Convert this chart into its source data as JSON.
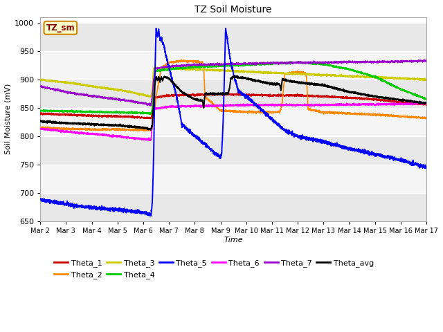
{
  "title": "TZ Soil Moisture",
  "xlabel": "Time",
  "ylabel": "Soil Moisture (mV)",
  "ylim": [
    650,
    1010
  ],
  "xlim": [
    0,
    15
  ],
  "xtick_labels": [
    "Mar 2",
    "Mar 3",
    "Mar 4",
    "Mar 5",
    "Mar 6",
    "Mar 7",
    "Mar 8",
    "Mar 9",
    "Mar 10",
    "Mar 11",
    "Mar 12",
    "Mar 13",
    "Mar 14",
    "Mar 15",
    "Mar 16",
    "Mar 17"
  ],
  "xtick_positions": [
    0,
    1,
    2,
    3,
    4,
    5,
    6,
    7,
    8,
    9,
    10,
    11,
    12,
    13,
    14,
    15
  ],
  "ytick_positions": [
    650,
    700,
    750,
    800,
    850,
    900,
    950,
    1000
  ],
  "series_colors": {
    "Theta_1": "#cc0000",
    "Theta_2": "#ff8800",
    "Theta_3": "#cccc00",
    "Theta_4": "#00cc00",
    "Theta_5": "#0000ff",
    "Theta_6": "#ff00ff",
    "Theta_7": "#9900cc",
    "Theta_avg": "#000000"
  },
  "legend_label": "TZ_sm",
  "fig_bg": "#ffffff",
  "plot_bg_light": "#eeeeee",
  "plot_bg_dark": "#dddddd",
  "grid_color": "#ffffff"
}
